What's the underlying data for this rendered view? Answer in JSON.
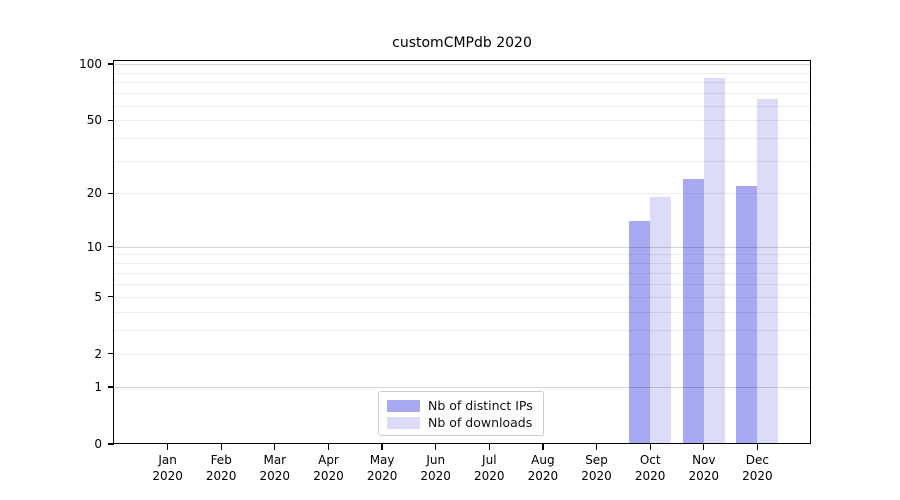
{
  "title": "customCMPdb 2020",
  "colors": {
    "distinct_ips_bar": "#a9a9f3",
    "downloads_bar": "#dcdcf9",
    "axis": "#000000",
    "legend_border": "#cccccc"
  },
  "legend": {
    "entries": [
      {
        "label": "Nb of distinct IPs",
        "color": "#a9a9f3"
      },
      {
        "label": "Nb of downloads",
        "color": "#dcdcf9"
      }
    ],
    "position": "bottom-center"
  },
  "chart_data": {
    "type": "bar",
    "title": "customCMPdb 2020",
    "categories": [
      {
        "month": "Jan",
        "year": "2020"
      },
      {
        "month": "Feb",
        "year": "2020"
      },
      {
        "month": "Mar",
        "year": "2020"
      },
      {
        "month": "Apr",
        "year": "2020"
      },
      {
        "month": "May",
        "year": "2020"
      },
      {
        "month": "Jun",
        "year": "2020"
      },
      {
        "month": "Jul",
        "year": "2020"
      },
      {
        "month": "Aug",
        "year": "2020"
      },
      {
        "month": "Sep",
        "year": "2020"
      },
      {
        "month": "Oct",
        "year": "2020"
      },
      {
        "month": "Nov",
        "year": "2020"
      },
      {
        "month": "Dec",
        "year": "2020"
      }
    ],
    "series": [
      {
        "name": "Nb of distinct IPs",
        "color": "#a9a9f3",
        "values": [
          null,
          null,
          null,
          null,
          null,
          null,
          null,
          null,
          null,
          14,
          24,
          22
        ]
      },
      {
        "name": "Nb of downloads",
        "color": "#dcdcf9",
        "values": [
          null,
          null,
          null,
          null,
          null,
          null,
          null,
          null,
          null,
          19,
          84,
          65
        ]
      }
    ],
    "y_axis": {
      "scale": "log1p",
      "range": [
        0,
        100
      ],
      "ticks": [
        0,
        1,
        2,
        5,
        10,
        20,
        50,
        100
      ],
      "gridlines_major": [
        1,
        10,
        100
      ],
      "gridlines_minor": [
        2,
        3,
        4,
        5,
        6,
        7,
        8,
        9,
        20,
        30,
        40,
        50,
        60,
        70,
        80,
        90
      ]
    },
    "xlabel": "",
    "ylabel": "",
    "grid": "horizontal",
    "legend_position": "bottom-center"
  }
}
